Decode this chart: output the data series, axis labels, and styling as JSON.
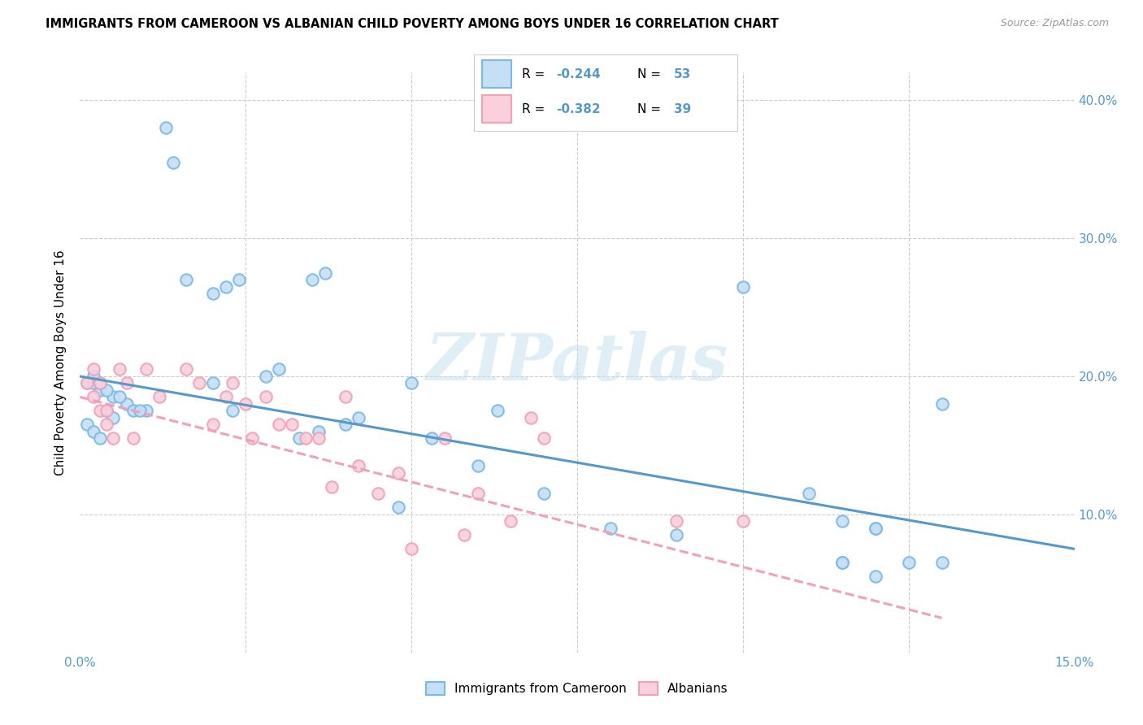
{
  "title": "IMMIGRANTS FROM CAMEROON VS ALBANIAN CHILD POVERTY AMONG BOYS UNDER 16 CORRELATION CHART",
  "source": "Source: ZipAtlas.com",
  "ylabel": "Child Poverty Among Boys Under 16",
  "xlim": [
    0.0,
    0.15
  ],
  "ylim": [
    0.0,
    0.42
  ],
  "ytick_positions": [
    0.1,
    0.2,
    0.3,
    0.4
  ],
  "ytick_labels": [
    "10.0%",
    "20.0%",
    "30.0%",
    "40.0%"
  ],
  "blue_color": "#7ab8e8",
  "blue_fill": "#c5dff5",
  "pink_color": "#f0a0b8",
  "pink_fill": "#fad0dc",
  "line_blue": "#5599cc",
  "line_pink": "#f0a0b8",
  "watermark": "ZIPatlas",
  "blue_scatter_x": [
    0.001,
    0.003,
    0.005,
    0.007,
    0.008,
    0.01,
    0.002,
    0.004,
    0.006,
    0.009,
    0.002,
    0.003,
    0.004,
    0.001,
    0.005,
    0.002,
    0.003,
    0.013,
    0.016,
    0.014,
    0.02,
    0.022,
    0.024,
    0.028,
    0.03,
    0.02,
    0.023,
    0.035,
    0.037,
    0.033,
    0.036,
    0.04,
    0.042,
    0.05,
    0.053,
    0.048,
    0.06,
    0.063,
    0.07,
    0.08,
    0.09,
    0.1,
    0.11,
    0.115,
    0.12,
    0.125,
    0.13,
    0.115,
    0.12,
    0.13,
    0.115,
    0.12
  ],
  "blue_scatter_y": [
    0.195,
    0.19,
    0.185,
    0.18,
    0.175,
    0.175,
    0.195,
    0.19,
    0.185,
    0.175,
    0.2,
    0.195,
    0.175,
    0.165,
    0.17,
    0.16,
    0.155,
    0.38,
    0.27,
    0.355,
    0.26,
    0.265,
    0.27,
    0.2,
    0.205,
    0.195,
    0.175,
    0.27,
    0.275,
    0.155,
    0.16,
    0.165,
    0.17,
    0.195,
    0.155,
    0.105,
    0.135,
    0.175,
    0.115,
    0.09,
    0.085,
    0.265,
    0.115,
    0.065,
    0.09,
    0.065,
    0.18,
    0.095,
    0.09,
    0.065,
    0.065,
    0.055
  ],
  "pink_scatter_x": [
    0.001,
    0.002,
    0.003,
    0.004,
    0.005,
    0.002,
    0.003,
    0.004,
    0.006,
    0.007,
    0.008,
    0.01,
    0.012,
    0.016,
    0.018,
    0.02,
    0.022,
    0.023,
    0.025,
    0.026,
    0.028,
    0.03,
    0.032,
    0.034,
    0.036,
    0.038,
    0.04,
    0.042,
    0.045,
    0.048,
    0.05,
    0.055,
    0.058,
    0.06,
    0.065,
    0.068,
    0.07,
    0.09,
    0.1
  ],
  "pink_scatter_y": [
    0.195,
    0.185,
    0.175,
    0.165,
    0.155,
    0.205,
    0.195,
    0.175,
    0.205,
    0.195,
    0.155,
    0.205,
    0.185,
    0.205,
    0.195,
    0.165,
    0.185,
    0.195,
    0.18,
    0.155,
    0.185,
    0.165,
    0.165,
    0.155,
    0.155,
    0.12,
    0.185,
    0.135,
    0.115,
    0.13,
    0.075,
    0.155,
    0.085,
    0.115,
    0.095,
    0.17,
    0.155,
    0.095,
    0.095
  ],
  "blue_trend_x": [
    0.0,
    0.15
  ],
  "blue_trend_y": [
    0.2,
    0.075
  ],
  "pink_trend_x": [
    0.0,
    0.13
  ],
  "pink_trend_y": [
    0.185,
    0.025
  ]
}
